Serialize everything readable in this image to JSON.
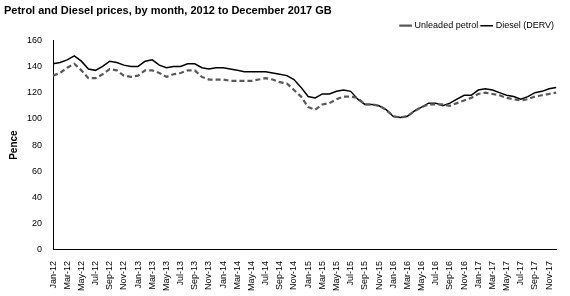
{
  "chart_data": {
    "type": "line",
    "title": "Petrol and Diesel prices, by month, 2012 to December 2017 GB",
    "y_label": "Pence",
    "categories": [
      "Jan-12",
      null,
      "Mar-12",
      null,
      "May-12",
      null,
      "Jul-12",
      null,
      "Sep-12",
      null,
      "Nov-12",
      null,
      "Jan-13",
      null,
      "Mar-13",
      null,
      "May-13",
      null,
      "Jul-13",
      null,
      "Sep-13",
      null,
      "Nov-13",
      null,
      "Jan-14",
      null,
      "Mar-14",
      null,
      "May-14",
      null,
      "Jul-14",
      null,
      "Sep-14",
      null,
      "Nov-14",
      null,
      "Jan-15",
      null,
      "Mar-15",
      null,
      "May-15",
      null,
      "Jul-15",
      null,
      "Sep-15",
      null,
      "Nov-15",
      null,
      "Jan-16",
      null,
      "Mar-16",
      null,
      "May-16",
      null,
      "Jul-16",
      null,
      "Sep-16",
      null,
      "Nov-16",
      null,
      "Jan-17",
      null,
      "Mar-17",
      null,
      "May-17",
      null,
      "Jul-17",
      null,
      "Sep-17",
      null,
      "Nov-17",
      null
    ],
    "series": [
      {
        "name": "Unleaded petrol",
        "color": "#595959",
        "line_style": "dashed",
        "values": [
          133,
          135,
          139,
          142,
          137,
          131,
          131,
          134,
          138,
          137,
          133,
          132,
          133,
          137,
          137,
          135,
          132,
          134,
          135,
          137,
          137,
          132,
          130,
          130,
          130,
          129,
          129,
          129,
          129,
          130,
          131,
          130,
          128,
          127,
          122,
          117,
          109,
          107,
          111,
          112,
          115,
          117,
          117,
          116,
          111,
          111,
          110,
          107,
          102,
          101,
          102,
          106,
          109,
          111,
          111,
          111,
          110,
          112,
          114,
          116,
          119,
          120,
          119,
          118,
          116,
          115,
          114,
          115,
          117,
          118,
          119,
          120
        ]
      },
      {
        "name": "Diesel (DERV)",
        "color": "#000000",
        "line_style": "solid",
        "values": [
          142,
          143,
          145,
          148,
          144,
          138,
          137,
          140,
          144,
          143,
          141,
          140,
          140,
          144,
          145,
          141,
          139,
          140,
          140,
          142,
          142,
          139,
          138,
          139,
          139,
          138,
          137,
          136,
          136,
          136,
          136,
          135,
          134,
          133,
          130,
          124,
          117,
          116,
          119,
          119,
          121,
          122,
          121,
          115,
          111,
          111,
          110,
          107,
          102,
          101,
          102,
          106,
          109,
          112,
          112,
          110,
          112,
          115,
          118,
          118,
          122,
          123,
          122,
          120,
          118,
          117,
          115,
          117,
          120,
          121,
          123,
          124
        ]
      }
    ],
    "ylim": [
      0,
      160
    ],
    "yticks": [
      0,
      20,
      40,
      60,
      80,
      100,
      120,
      140,
      160
    ],
    "grid": false,
    "legend": "top-right"
  }
}
